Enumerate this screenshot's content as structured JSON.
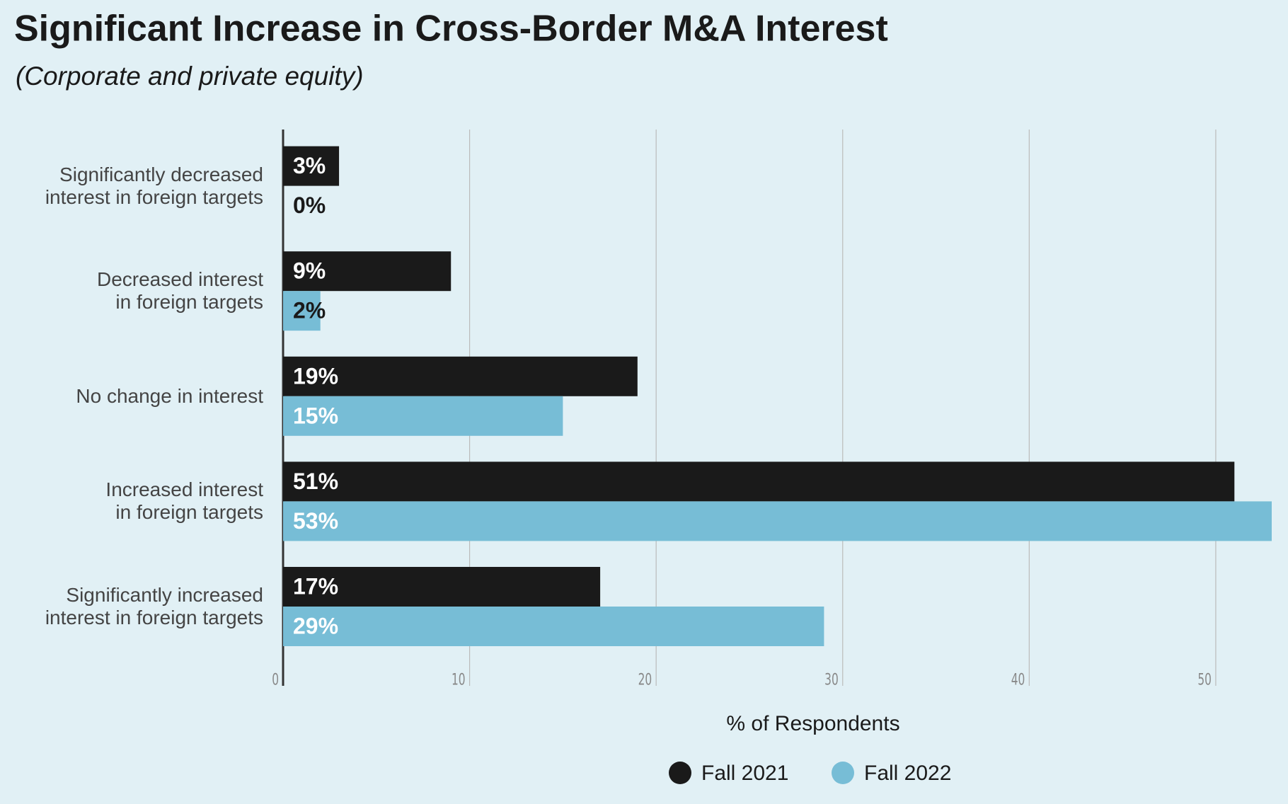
{
  "chart_data": {
    "type": "hbar",
    "title": "Significant Increase in Cross-Border M&A Interest",
    "subtitle": "(Corporate and private equity)",
    "categories": [
      "Significantly decreased\ninterest in foreign targets",
      "Decreased interest\nin foreign targets",
      "No change in interest",
      "Increased interest\nin foreign targets",
      "Significantly increased\ninterest in foreign targets"
    ],
    "series": [
      {
        "name": "Fall 2021",
        "color": "#1a1a1a",
        "values": [
          3,
          9,
          19,
          51,
          17
        ],
        "value_labels": [
          "3%",
          "9%",
          "19%",
          "51%",
          "17%"
        ]
      },
      {
        "name": "Fall 2022",
        "color": "#77bdd6",
        "values": [
          0,
          2,
          15,
          53,
          29
        ],
        "value_labels": [
          "0%",
          "2%",
          "15%",
          "53%",
          "29%"
        ]
      }
    ],
    "xlabel": "% of Respondents",
    "xlim": [
      0,
      53
    ],
    "xticks": [
      0,
      10,
      20,
      30,
      40,
      50
    ],
    "grid": true
  }
}
